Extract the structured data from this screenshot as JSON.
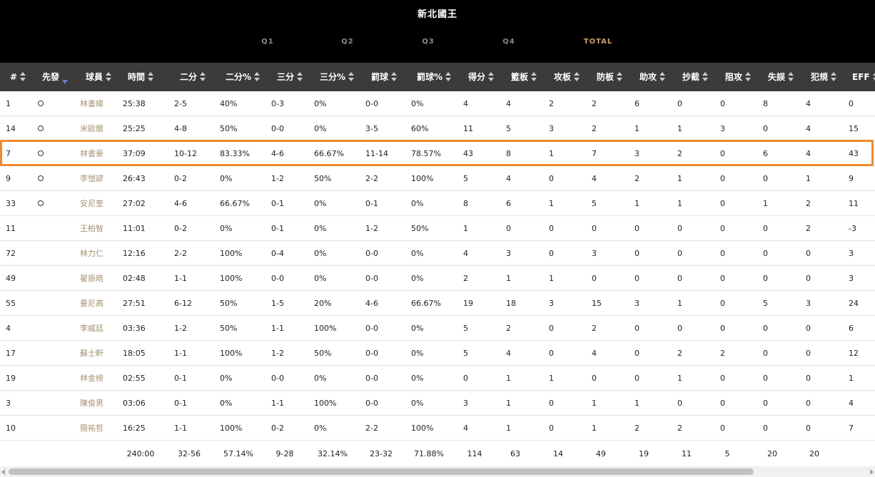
{
  "team_name": "新北國王",
  "quarter_tabs": [
    "Q1",
    "Q2",
    "Q3",
    "Q4",
    "TOTAL"
  ],
  "active_tab": "TOTAL",
  "columns": [
    "#",
    "先發",
    "球員",
    "時間",
    "二分",
    "二分%",
    "三分",
    "三分%",
    "罰球",
    "罰球%",
    "得分",
    "籃板",
    "攻板",
    "防板",
    "助攻",
    "抄截",
    "阻攻",
    "失誤",
    "犯規",
    "EFF"
  ],
  "sorted_column": "先發",
  "highlighted_row": "林書豪",
  "players": [
    {
      "num": "1",
      "starter": true,
      "name": "林書緯",
      "time": "25:38",
      "fg2": "2-5",
      "fg2_pct": "40%",
      "fg3": "0-3",
      "fg3_pct": "0%",
      "ft": "0-0",
      "ft_pct": "0%",
      "pts": "4",
      "reb": "4",
      "oreb": "2",
      "dreb": "2",
      "ast": "6",
      "stl": "0",
      "blk": "0",
      "tov": "8",
      "pf": "4",
      "eff": "0"
    },
    {
      "num": "14",
      "starter": true,
      "name": "米歐爾",
      "time": "25:25",
      "fg2": "4-8",
      "fg2_pct": "50%",
      "fg3": "0-0",
      "fg3_pct": "0%",
      "ft": "3-5",
      "ft_pct": "60%",
      "pts": "11",
      "reb": "5",
      "oreb": "3",
      "dreb": "2",
      "ast": "1",
      "stl": "1",
      "blk": "3",
      "tov": "0",
      "pf": "4",
      "eff": "15"
    },
    {
      "num": "7",
      "starter": true,
      "name": "林書豪",
      "time": "37:09",
      "fg2": "10-12",
      "fg2_pct": "83.33%",
      "fg3": "4-6",
      "fg3_pct": "66.67%",
      "ft": "11-14",
      "ft_pct": "78.57%",
      "pts": "43",
      "reb": "8",
      "oreb": "1",
      "dreb": "7",
      "ast": "3",
      "stl": "2",
      "blk": "0",
      "tov": "6",
      "pf": "4",
      "eff": "43"
    },
    {
      "num": "9",
      "starter": true,
      "name": "李愷諺",
      "time": "26:43",
      "fg2": "0-2",
      "fg2_pct": "0%",
      "fg3": "1-2",
      "fg3_pct": "50%",
      "ft": "2-2",
      "ft_pct": "100%",
      "pts": "5",
      "reb": "4",
      "oreb": "0",
      "dreb": "4",
      "ast": "2",
      "stl": "1",
      "blk": "0",
      "tov": "0",
      "pf": "1",
      "eff": "9"
    },
    {
      "num": "33",
      "starter": true,
      "name": "安尼奎",
      "time": "27:02",
      "fg2": "4-6",
      "fg2_pct": "66.67%",
      "fg3": "0-1",
      "fg3_pct": "0%",
      "ft": "0-1",
      "ft_pct": "0%",
      "pts": "8",
      "reb": "6",
      "oreb": "1",
      "dreb": "5",
      "ast": "1",
      "stl": "1",
      "blk": "0",
      "tov": "1",
      "pf": "2",
      "eff": "11"
    },
    {
      "num": "11",
      "starter": false,
      "name": "王柏智",
      "time": "11:01",
      "fg2": "0-2",
      "fg2_pct": "0%",
      "fg3": "0-1",
      "fg3_pct": "0%",
      "ft": "1-2",
      "ft_pct": "50%",
      "pts": "1",
      "reb": "0",
      "oreb": "0",
      "dreb": "0",
      "ast": "0",
      "stl": "0",
      "blk": "0",
      "tov": "0",
      "pf": "2",
      "eff": "-3"
    },
    {
      "num": "72",
      "starter": false,
      "name": "林力仁",
      "time": "12:16",
      "fg2": "2-2",
      "fg2_pct": "100%",
      "fg3": "0-4",
      "fg3_pct": "0%",
      "ft": "0-0",
      "ft_pct": "0%",
      "pts": "4",
      "reb": "3",
      "oreb": "0",
      "dreb": "3",
      "ast": "0",
      "stl": "0",
      "blk": "0",
      "tov": "0",
      "pf": "0",
      "eff": "3"
    },
    {
      "num": "49",
      "starter": false,
      "name": "翟振皓",
      "time": "02:48",
      "fg2": "1-1",
      "fg2_pct": "100%",
      "fg3": "0-0",
      "fg3_pct": "0%",
      "ft": "0-0",
      "ft_pct": "0%",
      "pts": "2",
      "reb": "1",
      "oreb": "1",
      "dreb": "0",
      "ast": "0",
      "stl": "0",
      "blk": "0",
      "tov": "0",
      "pf": "0",
      "eff": "3"
    },
    {
      "num": "55",
      "starter": false,
      "name": "曼尼高",
      "time": "27:51",
      "fg2": "6-12",
      "fg2_pct": "50%",
      "fg3": "1-5",
      "fg3_pct": "20%",
      "ft": "4-6",
      "ft_pct": "66.67%",
      "pts": "19",
      "reb": "18",
      "oreb": "3",
      "dreb": "15",
      "ast": "3",
      "stl": "1",
      "blk": "0",
      "tov": "5",
      "pf": "3",
      "eff": "24"
    },
    {
      "num": "4",
      "starter": false,
      "name": "李威廷",
      "time": "03:36",
      "fg2": "1-2",
      "fg2_pct": "50%",
      "fg3": "1-1",
      "fg3_pct": "100%",
      "ft": "0-0",
      "ft_pct": "0%",
      "pts": "5",
      "reb": "2",
      "oreb": "0",
      "dreb": "2",
      "ast": "0",
      "stl": "0",
      "blk": "0",
      "tov": "0",
      "pf": "0",
      "eff": "6"
    },
    {
      "num": "17",
      "starter": false,
      "name": "蘇士軒",
      "time": "18:05",
      "fg2": "1-1",
      "fg2_pct": "100%",
      "fg3": "1-2",
      "fg3_pct": "50%",
      "ft": "0-0",
      "ft_pct": "0%",
      "pts": "5",
      "reb": "4",
      "oreb": "0",
      "dreb": "4",
      "ast": "0",
      "stl": "2",
      "blk": "2",
      "tov": "0",
      "pf": "0",
      "eff": "12"
    },
    {
      "num": "19",
      "starter": false,
      "name": "林金榜",
      "time": "02:55",
      "fg2": "0-1",
      "fg2_pct": "0%",
      "fg3": "0-0",
      "fg3_pct": "0%",
      "ft": "0-0",
      "ft_pct": "0%",
      "pts": "0",
      "reb": "1",
      "oreb": "1",
      "dreb": "0",
      "ast": "0",
      "stl": "1",
      "blk": "0",
      "tov": "0",
      "pf": "0",
      "eff": "1"
    },
    {
      "num": "3",
      "starter": false,
      "name": "陳俊男",
      "time": "03:06",
      "fg2": "0-1",
      "fg2_pct": "0%",
      "fg3": "1-1",
      "fg3_pct": "100%",
      "ft": "0-0",
      "ft_pct": "0%",
      "pts": "3",
      "reb": "1",
      "oreb": "0",
      "dreb": "1",
      "ast": "1",
      "stl": "0",
      "blk": "0",
      "tov": "0",
      "pf": "0",
      "eff": "4"
    },
    {
      "num": "10",
      "starter": false,
      "name": "簡祐哲",
      "time": "16:25",
      "fg2": "1-1",
      "fg2_pct": "100%",
      "fg3": "0-2",
      "fg3_pct": "0%",
      "ft": "2-2",
      "ft_pct": "100%",
      "pts": "4",
      "reb": "1",
      "oreb": "0",
      "dreb": "1",
      "ast": "2",
      "stl": "2",
      "blk": "0",
      "tov": "0",
      "pf": "0",
      "eff": "7"
    }
  ],
  "totals": {
    "time": "240:00",
    "fg2": "32-56",
    "fg2_pct": "57.14%",
    "fg3": "9-28",
    "fg3_pct": "32.14%",
    "ft": "23-32",
    "ft_pct": "71.88%",
    "pts": "114",
    "reb": "63",
    "oreb": "14",
    "dreb": "49",
    "ast": "19",
    "stl": "11",
    "blk": "5",
    "tov": "20",
    "pf": "20"
  },
  "colors": {
    "header_bg": "#000000",
    "column_header_bg": "#3b3b3b",
    "player_name": "#a89373",
    "highlight_border": "#f08a2c",
    "total_tab": "#c8a26a"
  }
}
